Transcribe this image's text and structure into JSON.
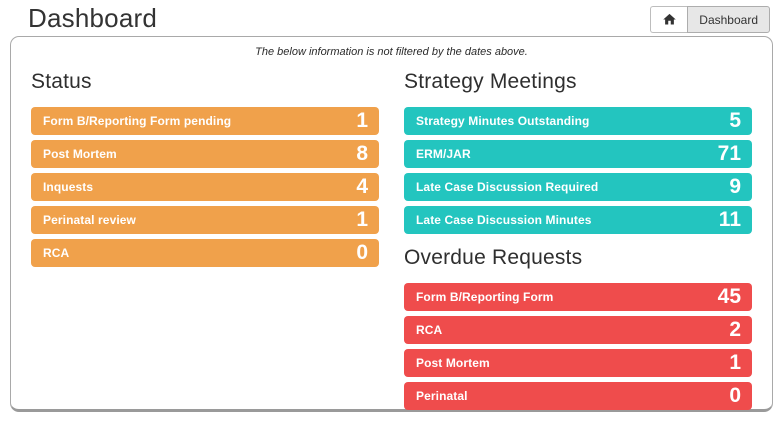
{
  "header": {
    "title": "Dashboard",
    "home_button": {
      "icon": "home-icon"
    },
    "dashboard_button_label": "Dashboard"
  },
  "panel": {
    "note": "The below information is not filtered by the dates above.",
    "sections": [
      {
        "id": "status",
        "title": "Status",
        "color": "#F0A14B",
        "items": [
          {
            "label": "Form B/Reporting Form pending",
            "value": "1"
          },
          {
            "label": "Post Mortem",
            "value": "8"
          },
          {
            "label": "Inquests",
            "value": "4"
          },
          {
            "label": "Perinatal review",
            "value": "1"
          },
          {
            "label": "RCA",
            "value": "0"
          }
        ]
      },
      {
        "id": "strategy-meetings",
        "title": "Strategy Meetings",
        "color": "#23C5BF",
        "items": [
          {
            "label": "Strategy Minutes Outstanding",
            "value": "5"
          },
          {
            "label": "ERM/JAR",
            "value": "71"
          },
          {
            "label": "Late Case Discussion Required",
            "value": "9"
          },
          {
            "label": "Late Case Discussion Minutes",
            "value": "11"
          }
        ]
      },
      {
        "id": "overdue-requests",
        "title": "Overdue Requests",
        "color": "#EF4C4C",
        "items": [
          {
            "label": "Form B/Reporting Form",
            "value": "45"
          },
          {
            "label": "RCA",
            "value": "2"
          },
          {
            "label": "Post Mortem",
            "value": "1"
          },
          {
            "label": "Perinatal",
            "value": "0"
          }
        ]
      }
    ]
  }
}
